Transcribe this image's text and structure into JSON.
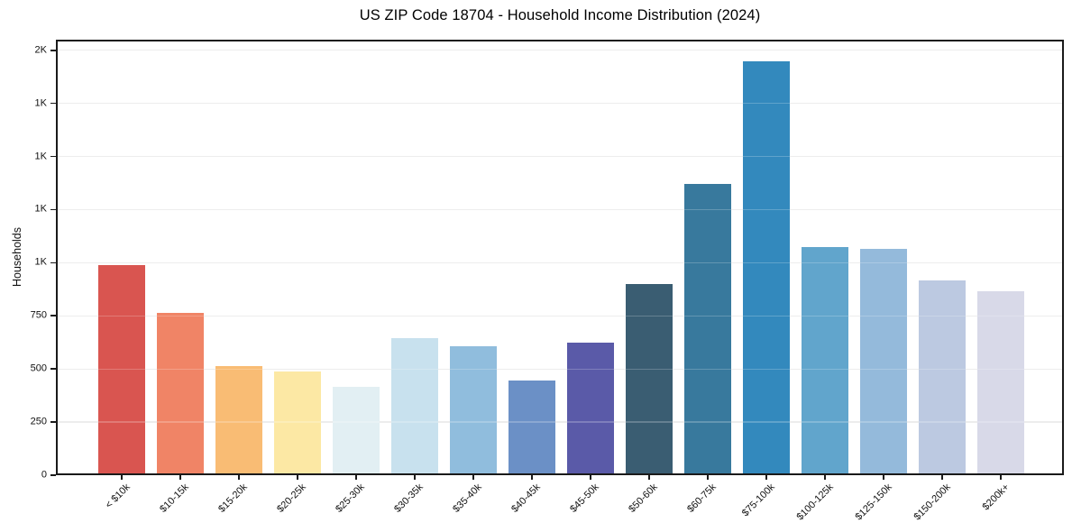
{
  "chart_data": {
    "type": "bar",
    "title": "US ZIP Code 18704 - Household Income Distribution (2024)",
    "xlabel": "",
    "ylabel": "Households",
    "categories": [
      "< $10k",
      "$10-15k",
      "$15-20k",
      "$20-25k",
      "$25-30k",
      "$30-35k",
      "$35-40k",
      "$40-45k",
      "$45-50k",
      "$50-60k",
      "$60-75k",
      "$75-100k",
      "$100-125k",
      "$125-150k",
      "$150-200k",
      "$200k+"
    ],
    "values": [
      990,
      765,
      515,
      490,
      415,
      645,
      605,
      445,
      625,
      900,
      1370,
      1950,
      1075,
      1065,
      915,
      865
    ],
    "bar_colors": [
      "#d95550",
      "#f08466",
      "#f9bc74",
      "#fce8a4",
      "#e2eff3",
      "#c8e1ee",
      "#90bddd",
      "#6b90c6",
      "#5a5aa8",
      "#3a5d72",
      "#38799d",
      "#3389bd",
      "#61a5cc",
      "#94badb",
      "#bcc9e1",
      "#d8d9e8"
    ],
    "ylim": [
      0,
      2050
    ],
    "yticks": [
      {
        "value": 0,
        "label": "0"
      },
      {
        "value": 250,
        "label": "250"
      },
      {
        "value": 500,
        "label": "500"
      },
      {
        "value": 750,
        "label": "750"
      },
      {
        "value": 1000,
        "label": "1K"
      },
      {
        "value": 1250,
        "label": "1K"
      },
      {
        "value": 1500,
        "label": "1K"
      },
      {
        "value": 1750,
        "label": "1K"
      },
      {
        "value": 2000,
        "label": "2K"
      }
    ],
    "grid": "horizontal",
    "legend": "none",
    "background": "#ffffff",
    "spine_color": "#1a1a1a",
    "grid_color": "#e8e8e8"
  }
}
